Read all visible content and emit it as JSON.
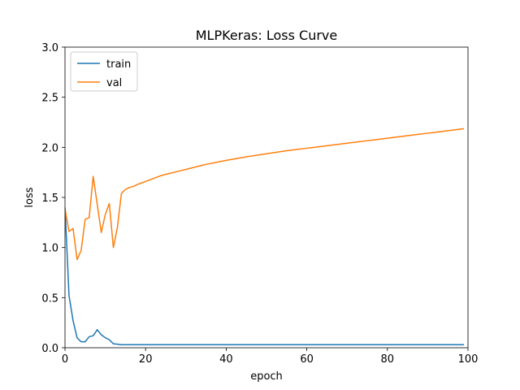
{
  "chart_data": {
    "type": "line",
    "title": "MLPKeras: Loss Curve",
    "xlabel": "epoch",
    "ylabel": "loss",
    "xlim": [
      0,
      100
    ],
    "ylim": [
      0,
      3.0
    ],
    "xticks": [
      0,
      20,
      40,
      60,
      80,
      100
    ],
    "yticks": [
      "0.0",
      "0.5",
      "1.0",
      "1.5",
      "2.0",
      "2.5",
      "3.0"
    ],
    "grid": false,
    "legend_position": "top-left",
    "series": [
      {
        "name": "train",
        "color": "#1f77b4",
        "values": [
          1.4,
          0.52,
          0.27,
          0.1,
          0.06,
          0.06,
          0.11,
          0.12,
          0.18,
          0.13,
          0.1,
          0.08,
          0.04,
          0.035,
          0.03,
          0.03,
          0.03,
          0.03,
          0.03,
          0.03,
          0.03,
          0.03,
          0.03,
          0.03,
          0.03,
          0.03,
          0.03,
          0.03,
          0.03,
          0.03,
          0.03,
          0.03,
          0.03,
          0.03,
          0.03,
          0.03,
          0.03,
          0.03,
          0.03,
          0.03,
          0.03,
          0.03,
          0.03,
          0.03,
          0.03,
          0.03,
          0.03,
          0.03,
          0.03,
          0.03,
          0.03,
          0.03,
          0.03,
          0.03,
          0.03,
          0.03,
          0.03,
          0.03,
          0.03,
          0.03,
          0.03,
          0.03,
          0.03,
          0.03,
          0.03,
          0.03,
          0.03,
          0.03,
          0.03,
          0.03,
          0.03,
          0.03,
          0.03,
          0.03,
          0.03,
          0.03,
          0.03,
          0.03,
          0.03,
          0.03,
          0.03,
          0.03,
          0.03,
          0.03,
          0.03,
          0.03,
          0.03,
          0.03,
          0.03,
          0.03,
          0.03,
          0.03,
          0.03,
          0.03,
          0.03,
          0.03,
          0.03,
          0.03,
          0.03,
          0.03
        ]
      },
      {
        "name": "val",
        "color": "#ff7f0e",
        "values": [
          1.39,
          1.16,
          1.19,
          0.88,
          0.97,
          1.28,
          1.3,
          1.71,
          1.43,
          1.15,
          1.33,
          1.44,
          1.0,
          1.2,
          1.54,
          1.58,
          1.6,
          1.61,
          1.63,
          1.645,
          1.66,
          1.675,
          1.69,
          1.705,
          1.72,
          1.73,
          1.74,
          1.75,
          1.76,
          1.77,
          1.78,
          1.79,
          1.8,
          1.81,
          1.82,
          1.83,
          1.838,
          1.846,
          1.854,
          1.862,
          1.87,
          1.877,
          1.884,
          1.891,
          1.898,
          1.905,
          1.912,
          1.918,
          1.924,
          1.93,
          1.936,
          1.942,
          1.948,
          1.954,
          1.96,
          1.966,
          1.971,
          1.976,
          1.981,
          1.986,
          1.991,
          1.996,
          2.001,
          2.006,
          2.011,
          2.016,
          2.021,
          2.026,
          2.031,
          2.036,
          2.041,
          2.046,
          2.051,
          2.056,
          2.061,
          2.066,
          2.071,
          2.076,
          2.081,
          2.086,
          2.091,
          2.096,
          2.101,
          2.106,
          2.111,
          2.116,
          2.121,
          2.126,
          2.131,
          2.136,
          2.141,
          2.146,
          2.151,
          2.156,
          2.161,
          2.166,
          2.171,
          2.176,
          2.181,
          2.186
        ]
      }
    ]
  }
}
